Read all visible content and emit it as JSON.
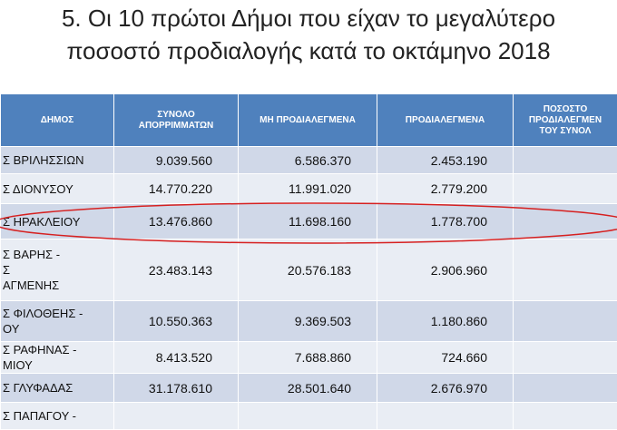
{
  "header": {
    "title_lines": [
      "5. Οι 10 πρώτοι Δήμοι που είχαν το μεγαλύτερο",
      "ποσοστό προδιαλογής κατά το οκτάμηνο 2018"
    ]
  },
  "table": {
    "columns": [
      [
        "ΔΗΜΟΣ"
      ],
      [
        "ΣΥΝΟΛΟ",
        "ΑΠΟΡΡΙΜΜΑΤΩΝ"
      ],
      [
        "ΜΗ ΠΡΟΔΙΑΛΕΓΜΕΝΑ"
      ],
      [
        "ΠΡΟΔΙΑΛΕΓΜΕΝΑ"
      ],
      [
        "ΠΟΣΟΣΤΟ",
        "ΠΡΟΔΙΑΛΕΓΜΕΝ",
        "ΤΟΥ ΣΥΝΟΛ"
      ]
    ],
    "rows": [
      {
        "municipality": [
          "Σ ΒΡΙΛΗΣΣΙΩΝ"
        ],
        "values": [
          "9.039.560",
          "6.586.370",
          "2.453.190"
        ]
      },
      {
        "municipality": [
          "Σ ΔΙΟΝΥΣΟΥ"
        ],
        "values": [
          "14.770.220",
          "11.991.020",
          "2.779.200"
        ]
      },
      {
        "municipality": [
          "Σ ΗΡΑΚΛΕΙΟΥ"
        ],
        "values": [
          "13.476.860",
          "11.698.160",
          "1.778.700"
        ]
      },
      {
        "municipality": [
          "Σ ΒΑΡΗΣ -",
          "Σ",
          "ΑΓΜΕΝΗΣ"
        ],
        "values": [
          "23.483.143",
          "20.576.183",
          "2.906.960"
        ]
      },
      {
        "municipality": [
          "Σ ΦΙΛΟΘΕΗΣ -",
          "ΟΥ"
        ],
        "values": [
          "10.550.363",
          "9.369.503",
          "1.180.860"
        ]
      },
      {
        "municipality": [
          "Σ ΡΑΦΗΝΑΣ -",
          "ΜΙΟΥ"
        ],
        "values": [
          "8.413.520",
          "7.688.860",
          "724.660"
        ]
      },
      {
        "municipality": [
          "Σ ΓΛΥΦΑΔΑΣ"
        ],
        "values": [
          "31.178.610",
          "28.501.640",
          "2.676.970"
        ]
      },
      {
        "municipality": [
          "Σ ΠΑΠΑΓΟΥ -"
        ],
        "values": []
      }
    ]
  }
}
